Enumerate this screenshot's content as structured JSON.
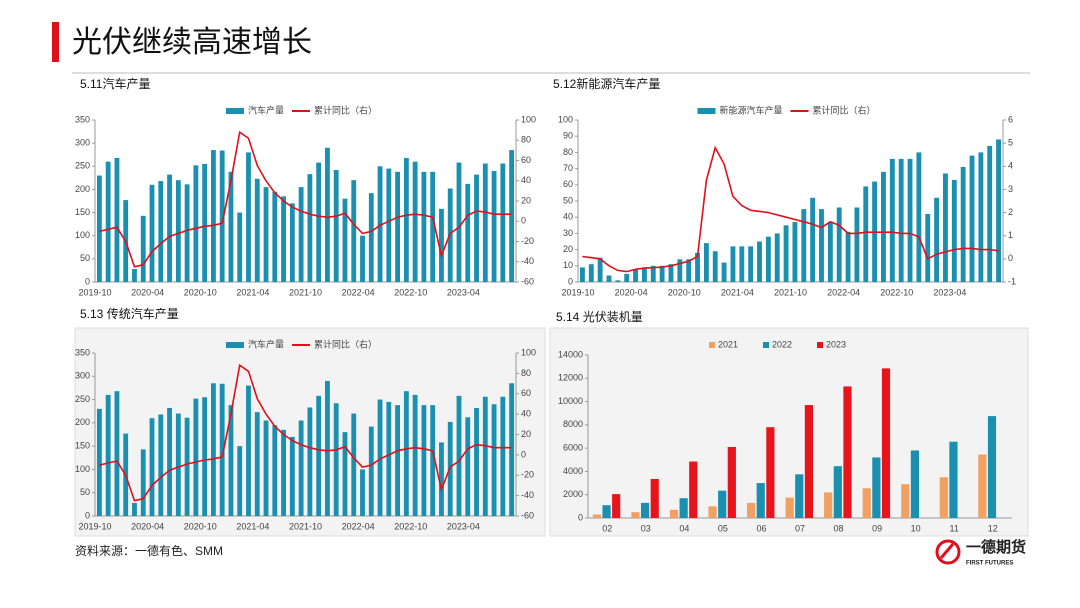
{
  "header": {
    "title": "光伏继续高速增长"
  },
  "source": "资料来源：一德有色、SMM",
  "logo": {
    "name": "一德期货",
    "sub": "FIRST FUTURES"
  },
  "chart_data": [
    {
      "type": "bar",
      "title": "5.11汽车产量",
      "categories": [
        "2019-10",
        null,
        null,
        null,
        null,
        null,
        "2020-04",
        null,
        null,
        null,
        null,
        null,
        "2020-10",
        null,
        null,
        null,
        null,
        null,
        "2021-04",
        null,
        null,
        null,
        null,
        null,
        "2021-10",
        null,
        null,
        null,
        null,
        null,
        "2022-04",
        null,
        null,
        null,
        null,
        null,
        "2022-10",
        null,
        null,
        null,
        null,
        null,
        "2023-04",
        null,
        null,
        null,
        null,
        null
      ],
      "series": [
        {
          "name": "汽车产量",
          "type": "bar",
          "color": "#1a8fb0",
          "values": [
            230,
            260,
            268,
            177,
            28,
            143,
            210,
            218,
            232,
            220,
            211,
            252,
            255,
            285,
            284,
            238,
            150,
            280,
            223,
            205,
            195,
            185,
            170,
            205,
            233,
            258,
            290,
            242,
            180,
            220,
            100,
            192,
            250,
            245,
            238,
            268,
            260,
            238,
            238,
            158,
            202,
            258,
            212,
            232,
            256,
            240,
            256,
            285
          ]
        },
        {
          "name": "累计同比（右）",
          "type": "line",
          "axis": "y2",
          "color": "#e0101a",
          "values": [
            -10,
            -8,
            -6,
            -20,
            -45,
            -43,
            -30,
            -22,
            -15,
            -12,
            -9,
            -7,
            -5,
            -4,
            -2,
            40,
            88,
            82,
            55,
            40,
            28,
            20,
            14,
            10,
            7,
            5,
            4,
            5,
            8,
            -3,
            -12,
            -10,
            -4,
            0,
            4,
            6,
            7,
            6,
            4,
            -34,
            -12,
            -6,
            6,
            10,
            9,
            7,
            7,
            7
          ]
        }
      ],
      "ylim": [
        0,
        350
      ],
      "yticks": [
        0,
        50,
        100,
        150,
        200,
        250,
        300,
        350
      ],
      "y2lim": [
        -60,
        100
      ],
      "y2ticks": [
        -60,
        -40,
        -20,
        0,
        20,
        40,
        60,
        80,
        100
      ]
    },
    {
      "type": "bar",
      "title": "5.12新能源汽车产量",
      "categories": [
        "2019-10",
        null,
        null,
        null,
        null,
        null,
        "2020-04",
        null,
        null,
        null,
        null,
        null,
        "2020-10",
        null,
        null,
        null,
        null,
        null,
        "2021-04",
        null,
        null,
        null,
        null,
        null,
        "2021-10",
        null,
        null,
        null,
        null,
        null,
        "2022-04",
        null,
        null,
        null,
        null,
        null,
        "2022-10",
        null,
        null,
        null,
        null,
        null,
        "2023-04",
        null,
        null,
        null,
        null,
        null
      ],
      "series": [
        {
          "name": "新能源汽车产量",
          "type": "bar",
          "color": "#1a8fb0",
          "values": [
            9,
            11,
            15,
            4,
            1,
            5,
            8,
            9,
            10,
            10,
            11,
            14,
            14,
            18,
            24,
            19,
            12,
            22,
            22,
            22,
            25,
            28,
            30,
            35,
            37,
            45,
            52,
            45,
            37,
            46,
            31,
            46,
            59,
            62,
            68,
            76,
            76,
            76,
            80,
            42,
            52,
            67,
            63,
            71,
            78,
            80,
            84,
            88
          ]
        },
        {
          "name": "累计同比（右）",
          "type": "line",
          "axis": "y2",
          "color": "#e0101a",
          "values": [
            0.1,
            0.05,
            0,
            -0.3,
            -0.5,
            -0.55,
            -0.45,
            -0.4,
            -0.38,
            -0.35,
            -0.3,
            -0.2,
            -0.1,
            0.1,
            3.4,
            4.8,
            4.1,
            2.7,
            2.3,
            2.1,
            2.05,
            2,
            1.9,
            1.8,
            1.7,
            1.6,
            1.5,
            1.35,
            1.6,
            1.45,
            1.1,
            1.1,
            1.15,
            1.15,
            1.15,
            1.15,
            1.1,
            1.1,
            0.95,
            0,
            0.2,
            0.3,
            0.4,
            0.45,
            0.45,
            0.4,
            0.4,
            0.35
          ]
        }
      ],
      "ylim": [
        0,
        100
      ],
      "yticks": [
        0,
        10,
        20,
        30,
        40,
        50,
        60,
        70,
        80,
        90,
        100
      ],
      "y2lim": [
        -1,
        6
      ],
      "y2ticks": [
        -1,
        0,
        1,
        2,
        3,
        4,
        5,
        6
      ]
    },
    {
      "type": "bar",
      "title": "5.13 传统汽车产量",
      "categories": [
        "2019-10",
        null,
        null,
        null,
        null,
        null,
        "2020-04",
        null,
        null,
        null,
        null,
        null,
        "2020-10",
        null,
        null,
        null,
        null,
        null,
        "2021-04",
        null,
        null,
        null,
        null,
        null,
        "2021-10",
        null,
        null,
        null,
        null,
        null,
        "2022-04",
        null,
        null,
        null,
        null,
        null,
        "2022-10",
        null,
        null,
        null,
        null,
        null,
        "2023-04",
        null,
        null,
        null,
        null,
        null
      ],
      "series": [
        {
          "name": "汽车产量",
          "type": "bar",
          "color": "#1a8fb0",
          "values": [
            230,
            260,
            268,
            177,
            28,
            143,
            210,
            218,
            232,
            220,
            211,
            252,
            255,
            285,
            284,
            238,
            150,
            280,
            223,
            205,
            195,
            185,
            170,
            205,
            233,
            258,
            290,
            242,
            180,
            220,
            100,
            192,
            250,
            245,
            238,
            268,
            260,
            238,
            238,
            158,
            202,
            258,
            212,
            232,
            256,
            240,
            256,
            285
          ]
        },
        {
          "name": "累计同比（右）",
          "type": "line",
          "axis": "y2",
          "color": "#e0101a",
          "values": [
            -10,
            -8,
            -6,
            -20,
            -45,
            -43,
            -30,
            -22,
            -15,
            -12,
            -9,
            -7,
            -5,
            -4,
            -2,
            40,
            88,
            82,
            55,
            40,
            28,
            20,
            14,
            10,
            7,
            5,
            4,
            5,
            8,
            -3,
            -12,
            -10,
            -4,
            0,
            4,
            6,
            7,
            6,
            4,
            -34,
            -12,
            -6,
            6,
            10,
            9,
            7,
            7,
            7
          ]
        }
      ],
      "ylim": [
        0,
        350
      ],
      "yticks": [
        0,
        50,
        100,
        150,
        200,
        250,
        300,
        350
      ],
      "y2lim": [
        -60,
        100
      ],
      "y2ticks": [
        -60,
        -40,
        -20,
        0,
        20,
        40,
        60,
        80,
        100
      ]
    },
    {
      "type": "bar",
      "title": "5.14 光伏装机量",
      "categories": [
        "02",
        "03",
        "04",
        "05",
        "06",
        "07",
        "08",
        "09",
        "10",
        "11",
        "12"
      ],
      "series": [
        {
          "name": "2021",
          "type": "bar",
          "color": "#f0a060",
          "values": [
            300,
            500,
            700,
            1000,
            1300,
            1750,
            2200,
            2550,
            2900,
            3500,
            5450
          ]
        },
        {
          "name": "2022",
          "type": "bar",
          "color": "#1a8fb0",
          "values": [
            1100,
            1300,
            1700,
            2350,
            3000,
            3750,
            4450,
            5200,
            5800,
            6550,
            8750
          ]
        },
        {
          "name": "2023",
          "type": "bar",
          "color": "#e8141c",
          "values": [
            2050,
            3350,
            4850,
            6100,
            7800,
            9700,
            11300,
            12850,
            null,
            null,
            null
          ]
        }
      ],
      "ylim": [
        0,
        14000
      ],
      "yticks": [
        0,
        2000,
        4000,
        6000,
        8000,
        10000,
        12000,
        14000
      ]
    }
  ]
}
